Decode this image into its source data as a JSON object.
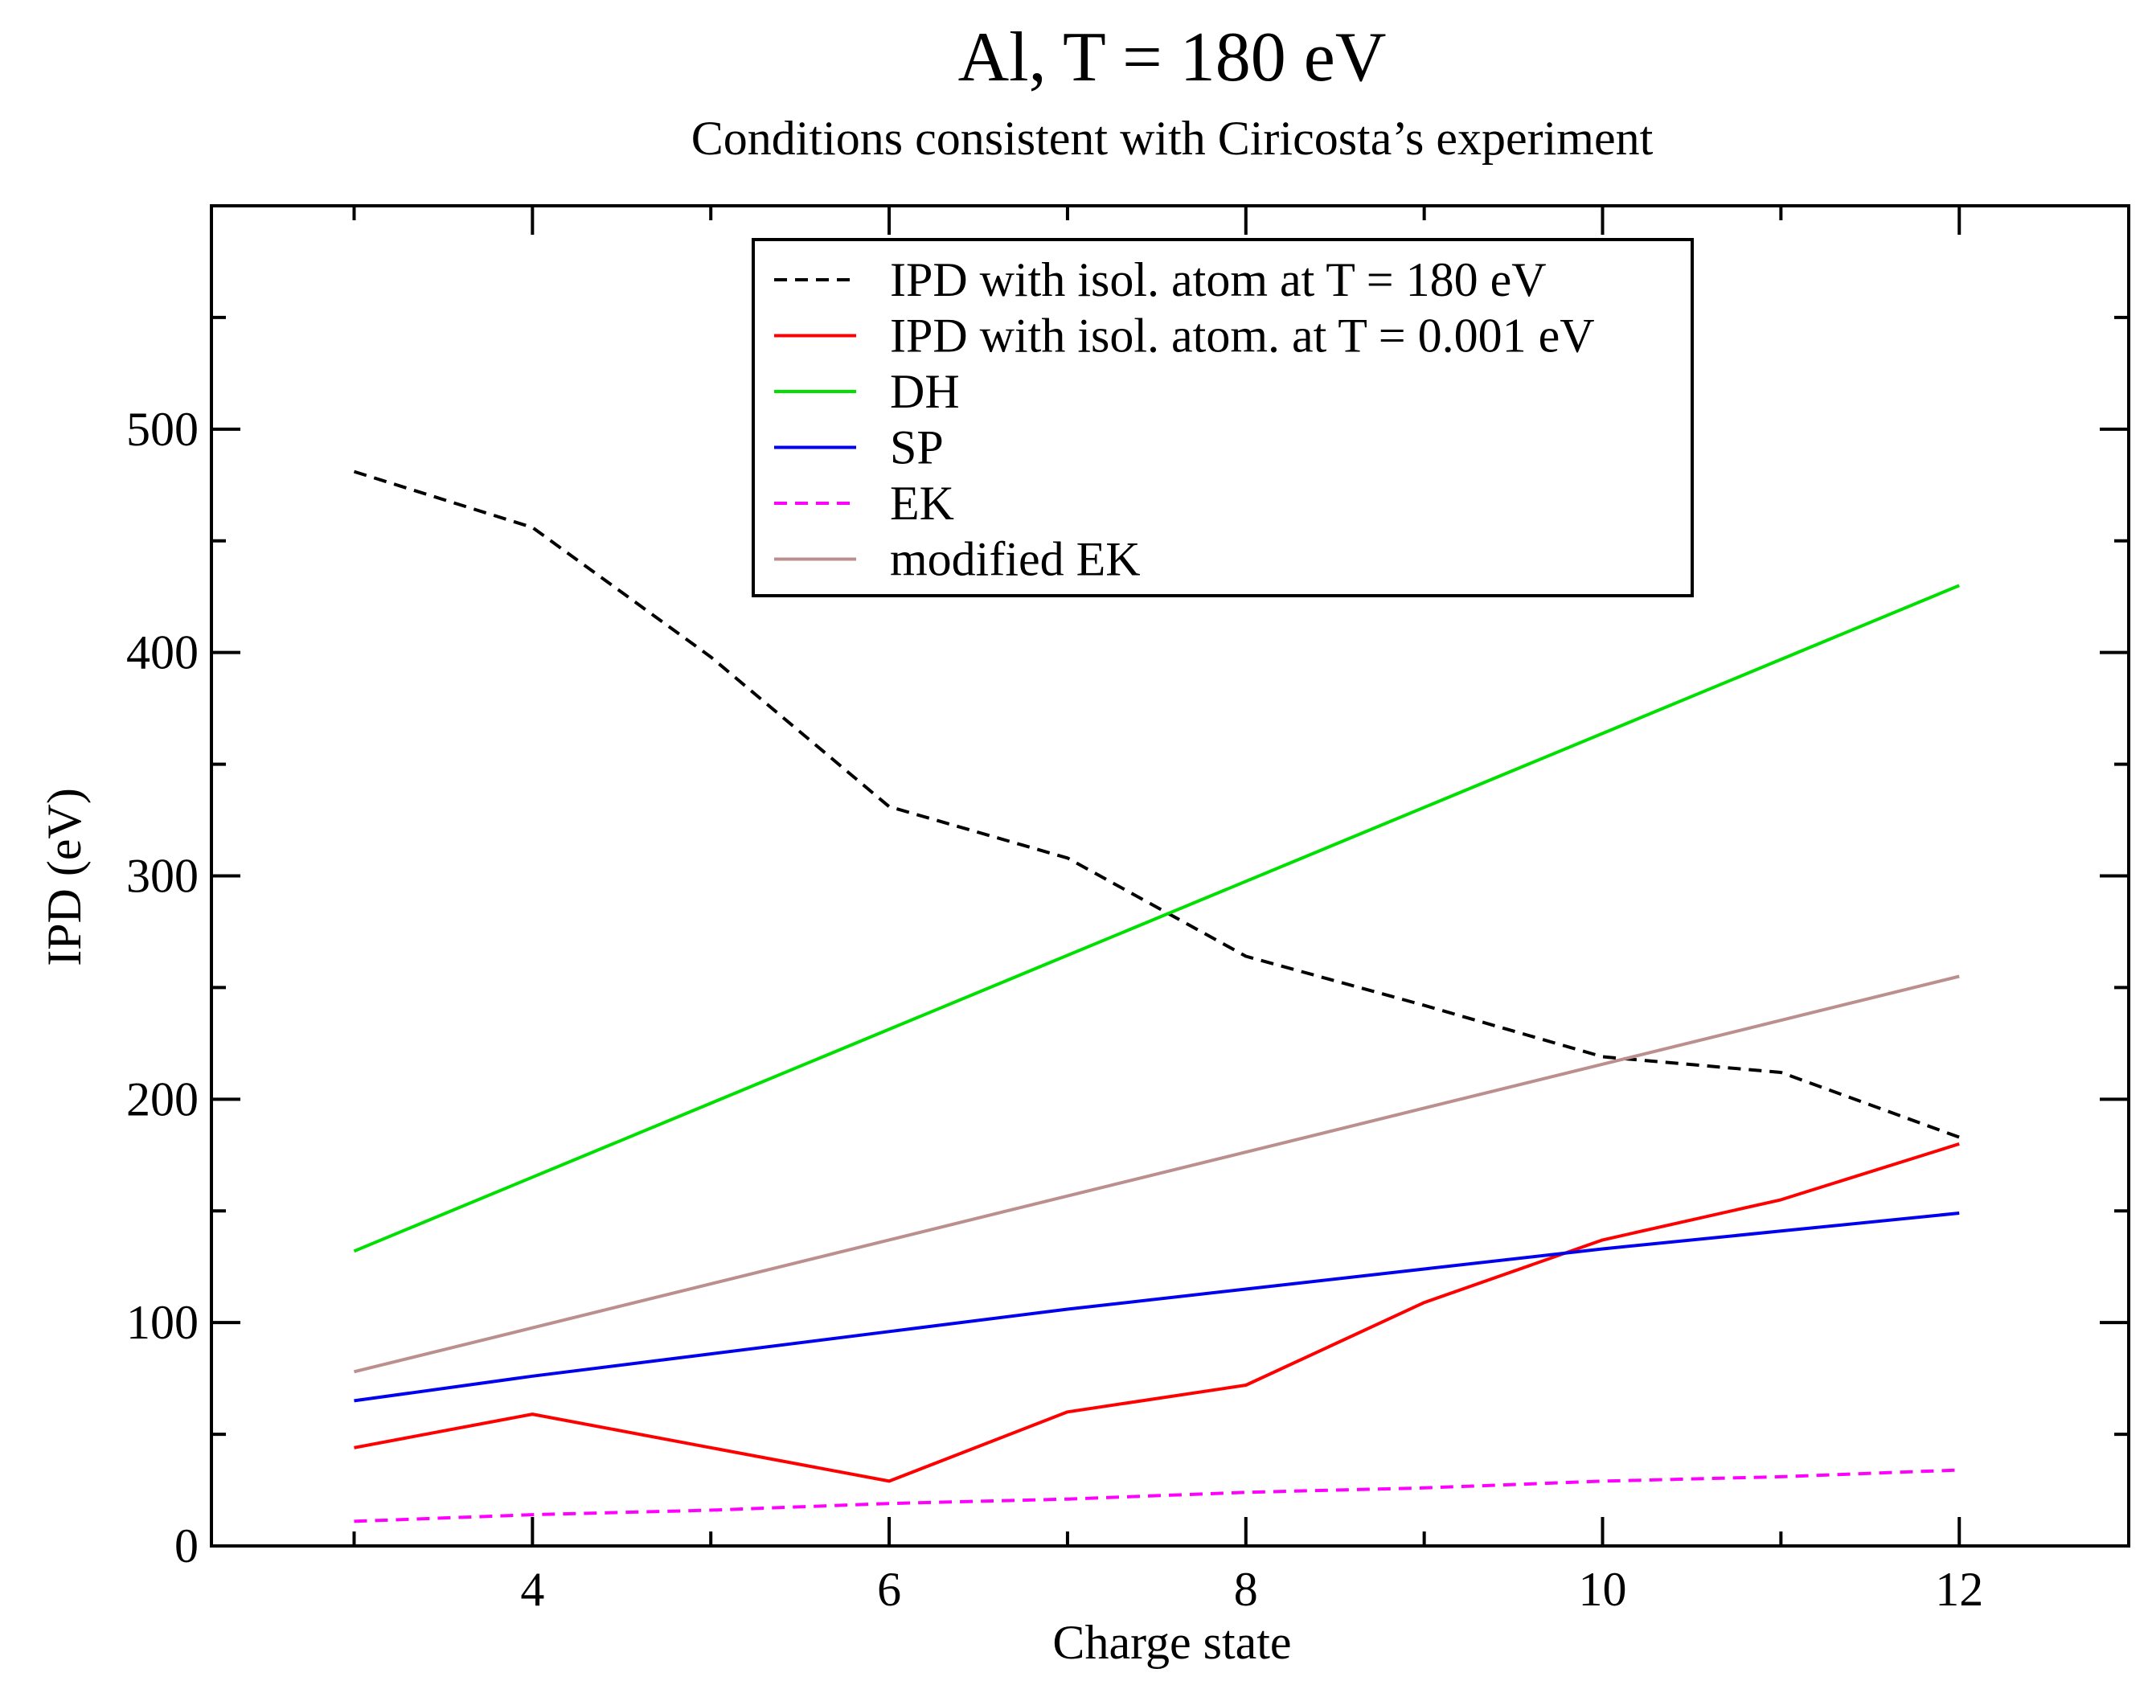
{
  "chart_data": {
    "type": "line",
    "title": "Al, T = 180 eV",
    "subtitle": "Conditions consistent with Ciricosta’s experiment",
    "xlabel": "Charge state",
    "ylabel": "IPD (eV)",
    "xlim": [
      2.2,
      12.95
    ],
    "ylim": [
      0,
      600
    ],
    "xticks": [
      4,
      6,
      8,
      10,
      12
    ],
    "yticks": [
      0,
      100,
      200,
      300,
      400,
      500
    ],
    "legend_position": "top-center",
    "series": [
      {
        "name": "IPD with isol. atom at T = 180 eV",
        "color": "#000000",
        "style": "dashed",
        "x": [
          3,
          4,
          5,
          6,
          7,
          8,
          9,
          10,
          11,
          12
        ],
        "y": [
          481,
          456,
          398,
          331,
          308,
          264,
          242,
          219,
          212,
          183
        ]
      },
      {
        "name": "IPD with isol. atom. at T = 0.001 eV",
        "color": "#ff0000",
        "style": "solid",
        "x": [
          3,
          4,
          5,
          6,
          7,
          8,
          9,
          10,
          11,
          12
        ],
        "y": [
          44,
          59,
          44,
          29,
          60,
          72,
          109,
          137,
          155,
          180
        ]
      },
      {
        "name": "DH",
        "color": "#00e000",
        "style": "solid",
        "x": [
          3,
          12
        ],
        "y": [
          132,
          430
        ]
      },
      {
        "name": "SP",
        "color": "#0000ee",
        "style": "solid",
        "x": [
          3,
          4,
          5,
          6,
          7,
          8,
          9,
          10,
          11,
          12
        ],
        "y": [
          65,
          76,
          86,
          96,
          106,
          115,
          124,
          133,
          141,
          149
        ]
      },
      {
        "name": "EK",
        "color": "#ff00ff",
        "style": "dashed",
        "x": [
          3,
          4,
          5,
          6,
          7,
          8,
          9,
          10,
          11,
          12
        ],
        "y": [
          11,
          14,
          16,
          19,
          21,
          24,
          26,
          29,
          31,
          34
        ]
      },
      {
        "name": "modified EK",
        "color": "#bc8f8f",
        "style": "solid",
        "x": [
          3,
          12
        ],
        "y": [
          78,
          255
        ]
      }
    ]
  }
}
